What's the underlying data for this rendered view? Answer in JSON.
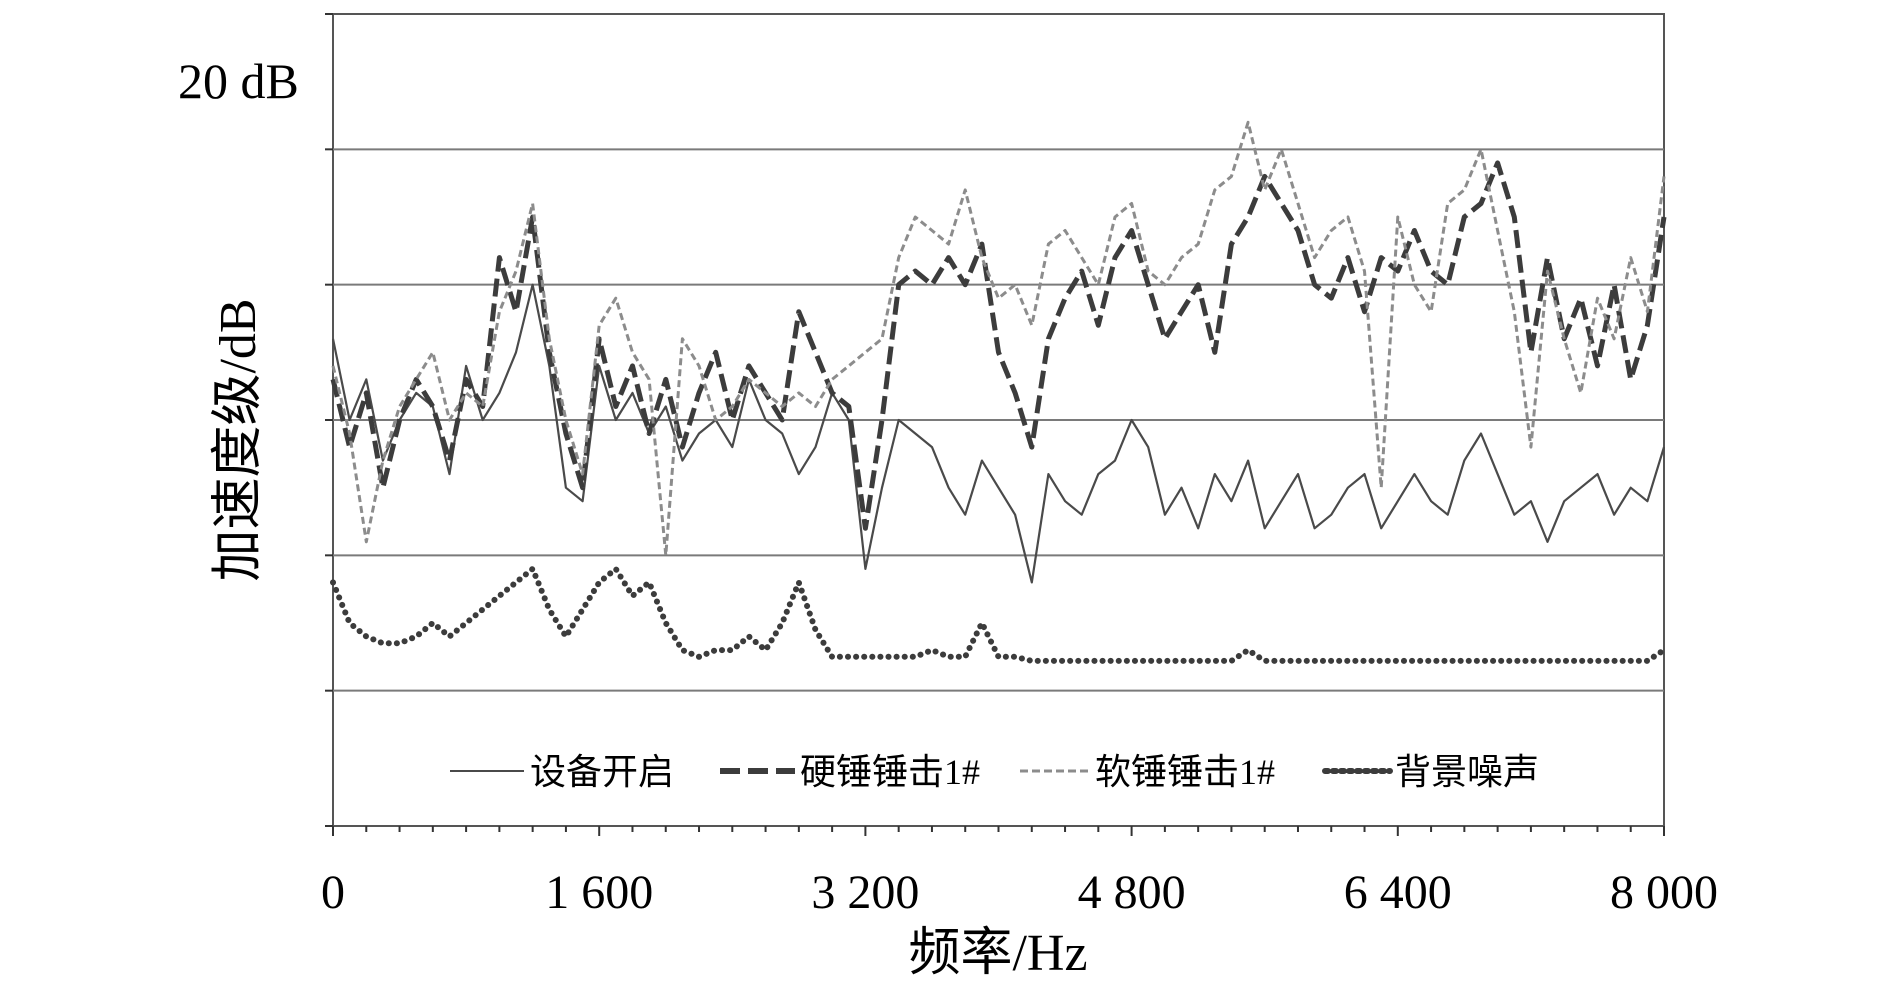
{
  "chart_data": {
    "type": "line",
    "title": "",
    "xlabel": "频率/Hz",
    "ylabel": "加速度级/dB",
    "scale_label": "20 dB",
    "xlim": [
      0,
      8000
    ],
    "ylim": [
      0,
      6
    ],
    "x_ticks": [
      0,
      1600,
      3200,
      4800,
      6400,
      8000
    ],
    "x_tick_labels": [
      "0",
      "1 600",
      "3 200",
      "4 800",
      "6 400",
      "8 000"
    ],
    "y_gridlines": [
      1,
      2,
      3,
      4,
      5
    ],
    "grid": true,
    "legend_position": "bottom",
    "series": [
      {
        "name": "设备开启",
        "style": "solid-thin",
        "color": "#4a4a4a",
        "x": [
          0,
          100,
          200,
          300,
          400,
          500,
          600,
          700,
          800,
          900,
          1000,
          1100,
          1200,
          1300,
          1400,
          1500,
          1600,
          1700,
          1800,
          1900,
          2000,
          2100,
          2200,
          2300,
          2400,
          2500,
          2600,
          2700,
          2800,
          2900,
          3000,
          3100,
          3200,
          3300,
          3400,
          3500,
          3600,
          3700,
          3800,
          3900,
          4000,
          4100,
          4200,
          4300,
          4400,
          4500,
          4600,
          4700,
          4800,
          4900,
          5000,
          5100,
          5200,
          5300,
          5400,
          5500,
          5600,
          5700,
          5800,
          5900,
          6000,
          6100,
          6200,
          6300,
          6400,
          6500,
          6600,
          6700,
          6800,
          6900,
          7000,
          7100,
          7200,
          7300,
          7400,
          7500,
          7600,
          7700,
          7800,
          7900,
          8000
        ],
        "values": [
          3.6,
          3.0,
          3.3,
          2.7,
          3.0,
          3.2,
          3.1,
          2.6,
          3.4,
          3.0,
          3.2,
          3.5,
          4.0,
          3.4,
          2.5,
          2.4,
          3.4,
          3.0,
          3.2,
          2.9,
          3.1,
          2.7,
          2.9,
          3.0,
          2.8,
          3.3,
          3.0,
          2.9,
          2.6,
          2.8,
          3.2,
          3.0,
          1.9,
          2.5,
          3.0,
          2.9,
          2.8,
          2.5,
          2.3,
          2.7,
          2.5,
          2.3,
          1.8,
          2.6,
          2.4,
          2.3,
          2.6,
          2.7,
          3.0,
          2.8,
          2.3,
          2.5,
          2.2,
          2.6,
          2.4,
          2.7,
          2.2,
          2.4,
          2.6,
          2.2,
          2.3,
          2.5,
          2.6,
          2.2,
          2.4,
          2.6,
          2.4,
          2.3,
          2.7,
          2.9,
          2.6,
          2.3,
          2.4,
          2.1,
          2.4,
          2.5,
          2.6,
          2.3,
          2.5,
          2.4,
          2.8
        ]
      },
      {
        "name": "硬锤锤击1#",
        "style": "dashed-thick",
        "color": "#3c3c3c",
        "x": [
          0,
          100,
          200,
          300,
          400,
          500,
          600,
          700,
          800,
          900,
          1000,
          1100,
          1200,
          1300,
          1400,
          1500,
          1600,
          1700,
          1800,
          1900,
          2000,
          2100,
          2200,
          2300,
          2400,
          2500,
          2600,
          2700,
          2800,
          2900,
          3000,
          3100,
          3200,
          3300,
          3400,
          3500,
          3600,
          3700,
          3800,
          3900,
          4000,
          4100,
          4200,
          4300,
          4400,
          4500,
          4600,
          4700,
          4800,
          4900,
          5000,
          5100,
          5200,
          5300,
          5400,
          5500,
          5600,
          5700,
          5800,
          5900,
          6000,
          6100,
          6200,
          6300,
          6400,
          6500,
          6600,
          6700,
          6800,
          6900,
          7000,
          7100,
          7200,
          7300,
          7400,
          7500,
          7600,
          7700,
          7800,
          7900,
          8000
        ],
        "values": [
          3.3,
          2.8,
          3.2,
          2.5,
          3.0,
          3.3,
          3.1,
          2.7,
          3.3,
          3.1,
          4.2,
          3.8,
          4.5,
          3.5,
          2.9,
          2.5,
          3.6,
          3.1,
          3.4,
          2.9,
          3.3,
          2.8,
          3.2,
          3.5,
          3.0,
          3.4,
          3.2,
          3.0,
          3.8,
          3.5,
          3.2,
          3.1,
          2.2,
          3.0,
          4.0,
          4.1,
          4.0,
          4.2,
          4.0,
          4.3,
          3.5,
          3.2,
          2.8,
          3.6,
          3.9,
          4.1,
          3.7,
          4.2,
          4.4,
          4.0,
          3.6,
          3.8,
          4.0,
          3.5,
          4.3,
          4.5,
          4.8,
          4.6,
          4.4,
          4.0,
          3.9,
          4.2,
          3.8,
          4.2,
          4.1,
          4.4,
          4.1,
          4.0,
          4.5,
          4.6,
          4.9,
          4.5,
          3.5,
          4.2,
          3.6,
          3.9,
          3.4,
          4.0,
          3.3,
          3.7,
          4.5
        ]
      },
      {
        "name": "软锤锤击1#",
        "style": "dashed-thin",
        "color": "#8c8c8c",
        "x": [
          0,
          100,
          200,
          300,
          400,
          500,
          600,
          700,
          800,
          900,
          1000,
          1100,
          1200,
          1300,
          1400,
          1500,
          1600,
          1700,
          1800,
          1900,
          2000,
          2100,
          2200,
          2300,
          2400,
          2500,
          2600,
          2700,
          2800,
          2900,
          3000,
          3100,
          3200,
          3300,
          3400,
          3500,
          3600,
          3700,
          3800,
          3900,
          4000,
          4100,
          4200,
          4300,
          4400,
          4500,
          4600,
          4700,
          4800,
          4900,
          5000,
          5100,
          5200,
          5300,
          5400,
          5500,
          5600,
          5700,
          5800,
          5900,
          6000,
          6100,
          6200,
          6300,
          6400,
          6500,
          6600,
          6700,
          6800,
          6900,
          7000,
          7100,
          7200,
          7300,
          7400,
          7500,
          7600,
          7700,
          7800,
          7900,
          8000
        ],
        "values": [
          3.4,
          2.9,
          2.1,
          2.7,
          3.1,
          3.3,
          3.5,
          3.0,
          3.2,
          3.1,
          3.8,
          4.1,
          4.6,
          3.6,
          3.0,
          2.6,
          3.7,
          3.9,
          3.5,
          3.3,
          2.0,
          3.6,
          3.4,
          3.0,
          3.1,
          3.3,
          3.2,
          3.1,
          3.2,
          3.1,
          3.3,
          3.4,
          3.5,
          3.6,
          4.2,
          4.5,
          4.4,
          4.3,
          4.7,
          4.2,
          3.9,
          4.0,
          3.7,
          4.3,
          4.4,
          4.2,
          4.0,
          4.5,
          4.6,
          4.1,
          4.0,
          4.2,
          4.3,
          4.7,
          4.8,
          5.2,
          4.7,
          5.0,
          4.6,
          4.2,
          4.4,
          4.5,
          4.1,
          2.5,
          4.5,
          4.0,
          3.8,
          4.6,
          4.7,
          5.0,
          4.4,
          3.8,
          2.8,
          4.1,
          3.6,
          3.2,
          3.9,
          3.6,
          4.2,
          3.8,
          4.8
        ]
      },
      {
        "name": "背景噪声",
        "style": "dotted-thick",
        "color": "#3c3c3c",
        "x": [
          0,
          100,
          200,
          300,
          400,
          500,
          600,
          700,
          800,
          900,
          1000,
          1100,
          1200,
          1300,
          1400,
          1500,
          1600,
          1700,
          1800,
          1900,
          2000,
          2100,
          2200,
          2300,
          2400,
          2500,
          2600,
          2700,
          2800,
          2900,
          3000,
          3100,
          3200,
          3300,
          3400,
          3500,
          3600,
          3700,
          3800,
          3900,
          4000,
          4100,
          4200,
          4300,
          4400,
          4500,
          4600,
          4700,
          4800,
          4900,
          5000,
          5100,
          5200,
          5300,
          5400,
          5500,
          5600,
          5700,
          5800,
          5900,
          6000,
          6100,
          6200,
          6300,
          6400,
          6500,
          6600,
          6700,
          6800,
          6900,
          7000,
          7100,
          7200,
          7300,
          7400,
          7500,
          7600,
          7700,
          7800,
          7900,
          8000
        ],
        "values": [
          1.8,
          1.5,
          1.4,
          1.35,
          1.35,
          1.4,
          1.5,
          1.4,
          1.5,
          1.6,
          1.7,
          1.8,
          1.9,
          1.6,
          1.4,
          1.6,
          1.8,
          1.9,
          1.7,
          1.8,
          1.5,
          1.3,
          1.25,
          1.3,
          1.3,
          1.4,
          1.3,
          1.5,
          1.8,
          1.45,
          1.25,
          1.25,
          1.25,
          1.25,
          1.25,
          1.25,
          1.3,
          1.25,
          1.25,
          1.5,
          1.25,
          1.25,
          1.22,
          1.22,
          1.22,
          1.22,
          1.22,
          1.22,
          1.22,
          1.22,
          1.22,
          1.22,
          1.22,
          1.22,
          1.22,
          1.3,
          1.22,
          1.22,
          1.22,
          1.22,
          1.22,
          1.22,
          1.22,
          1.22,
          1.22,
          1.22,
          1.22,
          1.22,
          1.22,
          1.22,
          1.22,
          1.22,
          1.22,
          1.22,
          1.22,
          1.22,
          1.22,
          1.22,
          1.22,
          1.22,
          1.3
        ]
      }
    ]
  }
}
